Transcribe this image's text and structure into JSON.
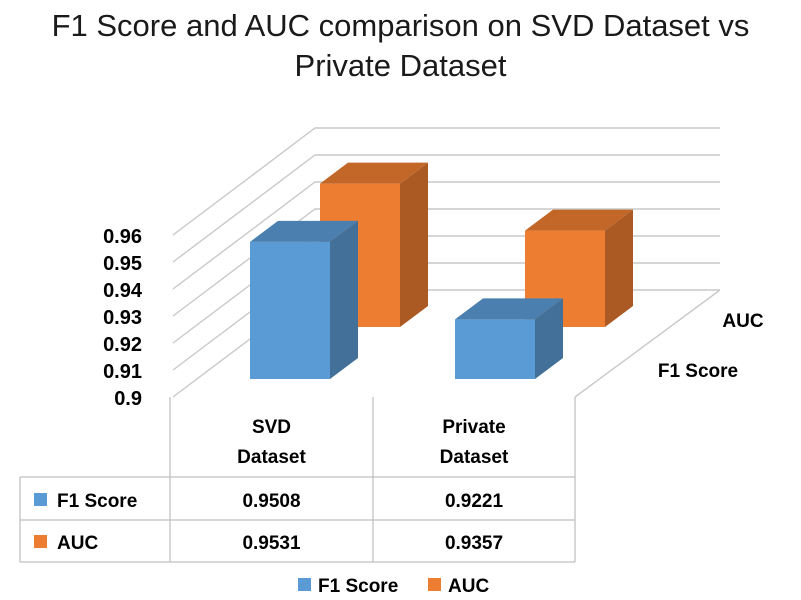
{
  "chart_data": {
    "type": "bar",
    "title": "F1 Score and AUC comparison on SVD Dataset vs Private Dataset",
    "categories": [
      "SVD Dataset",
      "Private Dataset"
    ],
    "category_lines": [
      [
        "SVD",
        "Dataset"
      ],
      [
        "Private",
        "Dataset"
      ]
    ],
    "series": [
      {
        "name": "F1 Score",
        "values": [
          0.9508,
          0.9221
        ],
        "labels": [
          "0.9508",
          "0.9221"
        ],
        "color": "#5b9bd5"
      },
      {
        "name": "AUC",
        "values": [
          0.9531,
          0.9357
        ],
        "labels": [
          "0.9531",
          "0.9357"
        ],
        "color": "#ed7d31"
      }
    ],
    "yticks": [
      "0.96",
      "0.95",
      "0.94",
      "0.93",
      "0.92",
      "0.91",
      "0.9"
    ],
    "ylim": [
      0.9,
      0.96
    ],
    "depth_labels": [
      "AUC",
      "F1 Score"
    ],
    "legend_position": "bottom",
    "data_table": true
  }
}
